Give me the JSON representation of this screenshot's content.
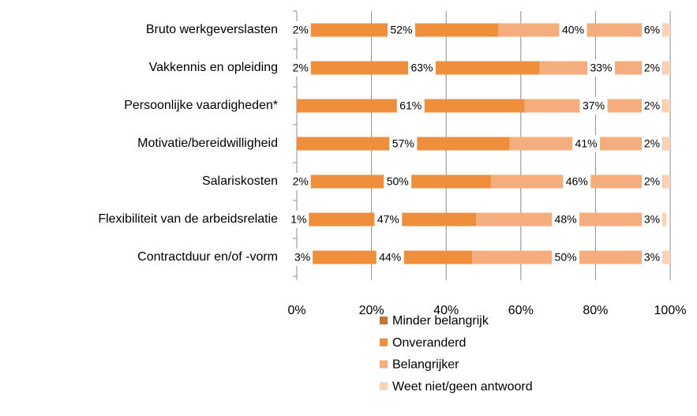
{
  "chart_data": {
    "type": "stacked-bar-horizontal",
    "categories": [
      "Bruto werkgeverslasten",
      "Vakkennis en opleiding",
      "Persoonlijke vaardigheden*",
      "Motivatie/bereidwilligheid",
      "Salariskosten",
      "Flexibiliteit van de arbeidsrelatie",
      "Contractduur en/of -vorm"
    ],
    "series": [
      {
        "name": "Minder belangrijk",
        "color": "#c8762e",
        "values": [
          2,
          2,
          null,
          null,
          2,
          1,
          3
        ],
        "value_labels": [
          "2%",
          "2%",
          null,
          null,
          "2%",
          "1%",
          "3%"
        ]
      },
      {
        "name": "Onveranderd",
        "color": "#ef8f3c",
        "values": [
          52,
          63,
          61,
          57,
          50,
          47,
          44
        ],
        "value_labels": [
          "52%",
          "63%",
          "61%",
          "57%",
          "50%",
          "47%",
          "44%"
        ]
      },
      {
        "name": "Belangrijker",
        "color": "#f6ad7d",
        "values": [
          40,
          33,
          37,
          41,
          46,
          48,
          50
        ],
        "value_labels": [
          "40%",
          "33%",
          "37%",
          "41%",
          "46%",
          "48%",
          "50%"
        ]
      },
      {
        "name": "Weet niet/geen antwoord",
        "color": "#fbd2b6",
        "values": [
          6,
          2,
          2,
          2,
          2,
          3,
          3
        ],
        "value_labels": [
          "6%",
          "2%",
          "2%",
          "2%",
          "2%",
          "3%",
          "3%"
        ]
      }
    ],
    "xlim": [
      0,
      100
    ],
    "xticks": [
      {
        "value": 0,
        "label": "0%"
      },
      {
        "value": 20,
        "label": "20%"
      },
      {
        "value": 40,
        "label": "40%"
      },
      {
        "value": 60,
        "label": "60%"
      },
      {
        "value": 80,
        "label": "80%"
      },
      {
        "value": 100,
        "label": "100%"
      }
    ],
    "grid": true,
    "legend": "bottom"
  }
}
